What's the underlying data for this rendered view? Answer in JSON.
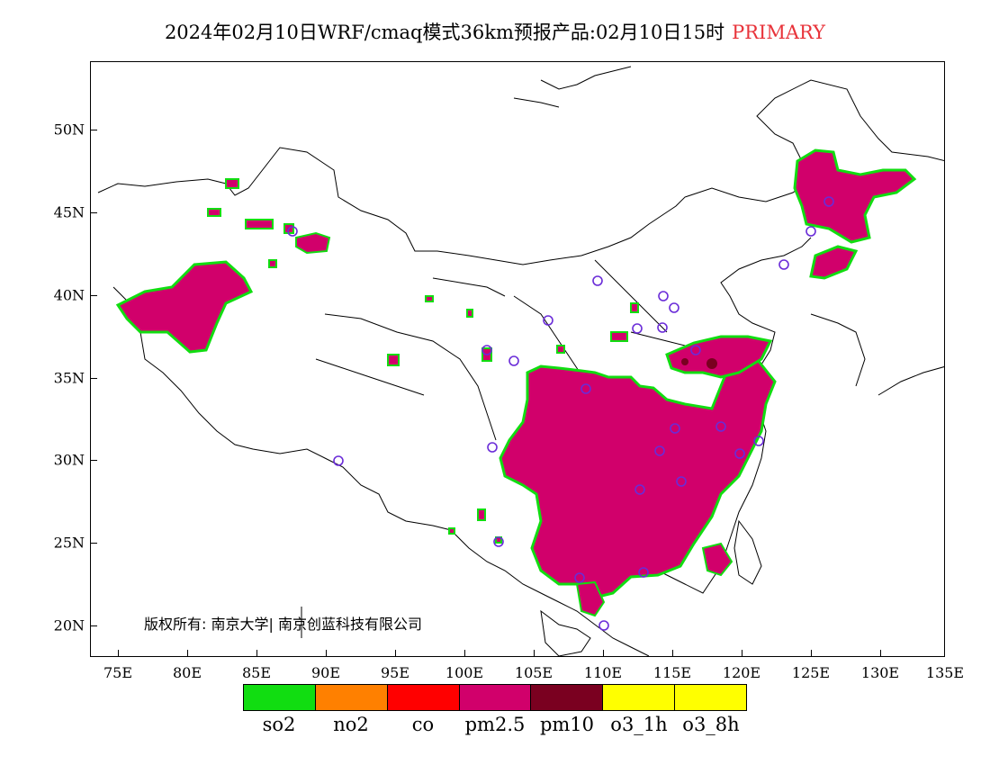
{
  "title": {
    "main": "2024年02月10日WRF/cmaq模式36km预报产品:02月10日15时",
    "tag": "PRIMARY"
  },
  "axes": {
    "lat_labels": [
      "50N",
      "45N",
      "40N",
      "35N",
      "30N",
      "25N",
      "20N"
    ],
    "lon_labels": [
      "75E",
      "80E",
      "85E",
      "90E",
      "95E",
      "100E",
      "105E",
      "110E",
      "115E",
      "120E",
      "125E",
      "130E",
      "135E"
    ]
  },
  "copyright": "版权所有: 南京大学| 南京创蓝科技有限公司",
  "legend": [
    {
      "label": "so2",
      "color": "#11dd11"
    },
    {
      "label": "no2",
      "color": "#ff8000"
    },
    {
      "label": "co",
      "color": "#ff0000"
    },
    {
      "label": "pm2.5",
      "color": "#d1006b"
    },
    {
      "label": "pm10",
      "color": "#7a0020"
    },
    {
      "label": "o3_1h",
      "color": "#ffff00"
    },
    {
      "label": "o3_8h",
      "color": "#ffff00"
    }
  ],
  "colors": {
    "pm25": "#d1006b",
    "pm10": "#7a0020",
    "so2": "#11dd11",
    "no2": "#ff8000",
    "co": "#ff0000",
    "station_marker": "#6a2cd8"
  }
}
